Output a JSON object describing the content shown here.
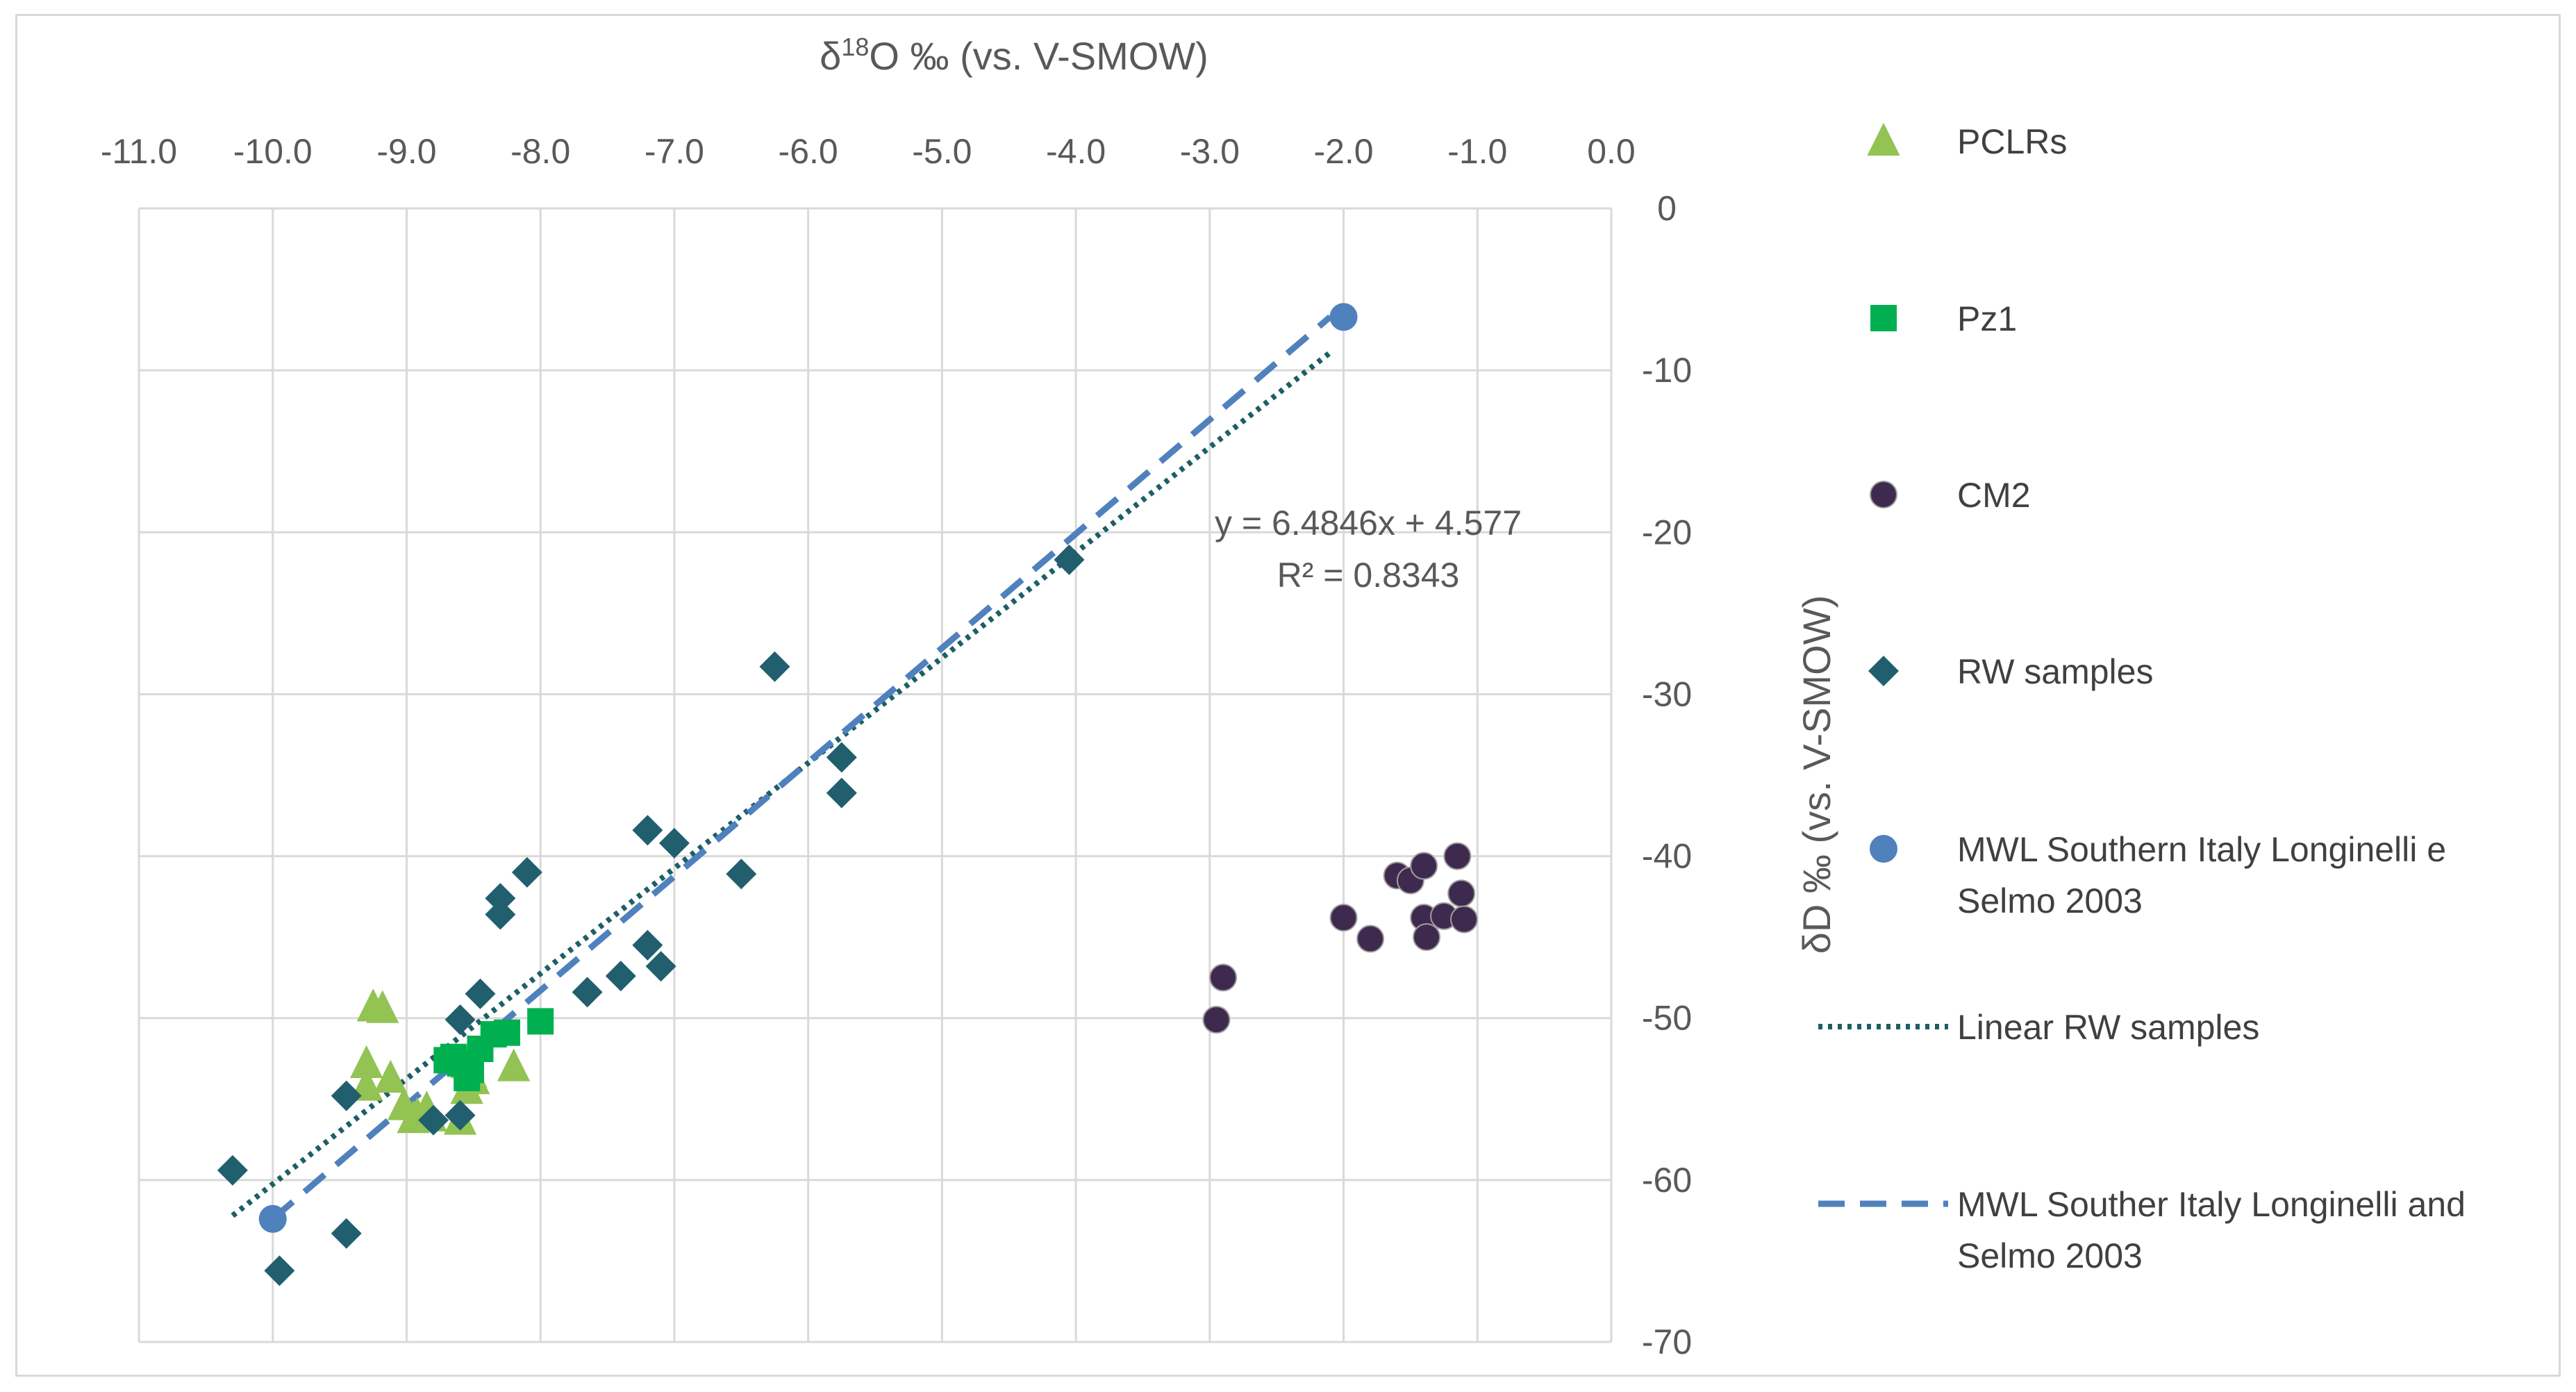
{
  "chart_data": {
    "type": "scatter",
    "title": "",
    "xlabel": "δ18O ‰ (vs. V-SMOW)",
    "xlabel_parts": {
      "prefix": "δ",
      "sup": "18",
      "rest": "O ‰ (vs. V-SMOW)"
    },
    "ylabel": "δD ‰ (vs. V-SMOW)",
    "xlim": [
      -11,
      0
    ],
    "ylim": [
      -70,
      0
    ],
    "x_axis_position": "top",
    "y_axis_position": "right",
    "grid": true,
    "x_ticks": [
      "-11.0",
      "-10.0",
      "-9.0",
      "-8.0",
      "-7.0",
      "-6.0",
      "-5.0",
      "-4.0",
      "-3.0",
      "-2.0",
      "-1.0",
      "0.0"
    ],
    "y_ticks": [
      "0",
      "-10",
      "-20",
      "-30",
      "-40",
      "-50",
      "-60",
      "-70"
    ],
    "legend_position": "right",
    "series": [
      {
        "name": "PCLRs",
        "marker": "triangle",
        "color": "#92c353",
        "x": [
          -9.25,
          -9.18,
          -9.3,
          -9.3,
          -9.12,
          -9.02,
          -8.95,
          -8.92,
          -8.85,
          -8.82,
          -8.6,
          -8.55,
          -8.52,
          -8.5,
          -8.55,
          -8.2
        ],
        "y": [
          -49.3,
          -49.4,
          -52.8,
          -54.2,
          -53.7,
          -55.4,
          -56.2,
          -56.0,
          -55.6,
          -56.1,
          -56.3,
          -54.4,
          -53.4,
          -53.8,
          -52.8,
          -53.0
        ]
      },
      {
        "name": "Pz1",
        "marker": "square",
        "color": "#00b050",
        "x": [
          -8.7,
          -8.65,
          -8.6,
          -8.55,
          -8.52,
          -8.45,
          -8.35,
          -8.25,
          -8.0
        ],
        "y": [
          -52.6,
          -52.4,
          -52.8,
          -53.7,
          -53.2,
          -51.9,
          -51.0,
          -50.9,
          -50.2
        ]
      },
      {
        "name": "CM2",
        "marker": "circle",
        "color": "#3f2a4f",
        "x": [
          -2.95,
          -2.9,
          -2.0,
          -1.8,
          -1.6,
          -1.5,
          -1.4,
          -1.4,
          -1.38,
          -1.25,
          -1.15,
          -1.12,
          -1.1
        ],
        "y": [
          -50.1,
          -47.5,
          -43.8,
          -45.1,
          -41.2,
          -41.5,
          -40.6,
          -43.8,
          -45.0,
          -43.7,
          -40.0,
          -42.3,
          -43.9
        ]
      },
      {
        "name": "RW samples",
        "marker": "diamond",
        "color": "#215f6e",
        "x": [
          -10.3,
          -9.95,
          -9.45,
          -9.45,
          -8.8,
          -8.6,
          -8.6,
          -8.45,
          -8.3,
          -8.3,
          -8.1,
          -7.65,
          -7.4,
          -7.2,
          -7.2,
          -7.1,
          -7.0,
          -6.5,
          -6.25,
          -5.75,
          -5.75,
          -4.05
        ],
        "y": [
          -59.4,
          -65.6,
          -63.3,
          -54.8,
          -56.3,
          -56.0,
          -50.1,
          -48.5,
          -42.6,
          -43.6,
          -41.0,
          -48.4,
          -47.4,
          -38.4,
          -45.5,
          -46.8,
          -39.2,
          -41.1,
          -28.3,
          -33.9,
          -36.1,
          -21.7
        ]
      },
      {
        "name": "MWL Southern Italy Longinelli e Selmo 2003",
        "marker": "circle",
        "color": "#4f81bd",
        "x": [
          -10.0,
          -2.0
        ],
        "y": [
          -62.4,
          -6.7
        ]
      }
    ],
    "lines": [
      {
        "name": "Linear RW samples",
        "style": "dotted",
        "color": "#1d5f66",
        "x": [
          -10.3,
          -2.1
        ],
        "y": [
          -62.2,
          -8.9
        ]
      },
      {
        "name": "MWL Souther Italy Longinelli and Selmo 2003",
        "style": "dashed",
        "color": "#4f81bd",
        "x": [
          -10.0,
          -2.1
        ],
        "y": [
          -62.4,
          -6.7
        ]
      }
    ],
    "annotations": [
      "y = 6.4846x + 4.577",
      "R² = 0.8343"
    ],
    "legend": [
      {
        "label_lines": [
          "PCLRs"
        ],
        "kind": "triangle",
        "color": "#92c353"
      },
      {
        "label_lines": [
          "Pz1"
        ],
        "kind": "square",
        "color": "#00b050"
      },
      {
        "label_lines": [
          "CM2"
        ],
        "kind": "circle",
        "color": "#3f2a4f"
      },
      {
        "label_lines": [
          "RW samples"
        ],
        "kind": "diamond",
        "color": "#215f6e"
      },
      {
        "label_lines": [
          "MWL Southern Italy Longinelli e",
          "Selmo 2003"
        ],
        "kind": "circle",
        "color": "#4f81bd"
      },
      {
        "label_lines": [
          "Linear RW samples"
        ],
        "kind": "dotted",
        "color": "#1d5f66"
      },
      {
        "label_lines": [
          "MWL Souther Italy Longinelli and",
          "Selmo 2003"
        ],
        "kind": "dashed",
        "color": "#4f81bd"
      }
    ]
  }
}
